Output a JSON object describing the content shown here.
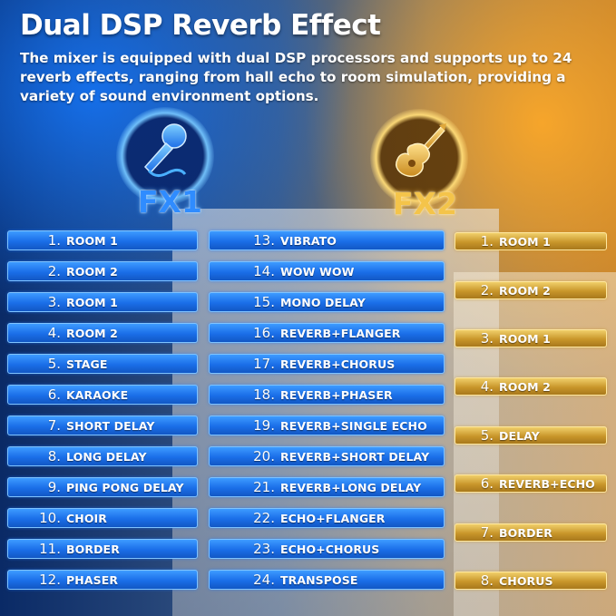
{
  "header": {
    "title": "Dual DSP Reverb Effect",
    "description": "The mixer is equipped with dual DSP processors and supports up to 24 reverb effects, ranging from hall echo to room simulation, providing a variety of sound environment options."
  },
  "fx1": {
    "label": "FX1",
    "icon": "microphone-icon",
    "accent": "#2f8cff",
    "items": [
      {
        "num": "1.",
        "name": "ROOM 1"
      },
      {
        "num": "2.",
        "name": "ROOM 2"
      },
      {
        "num": "3.",
        "name": "ROOM 1"
      },
      {
        "num": "4.",
        "name": "ROOM 2"
      },
      {
        "num": "5.",
        "name": "STAGE"
      },
      {
        "num": "6.",
        "name": "KARAOKE"
      },
      {
        "num": "7.",
        "name": "SHORT DELAY"
      },
      {
        "num": "8.",
        "name": "LONG DELAY"
      },
      {
        "num": "9.",
        "name": "PING PONG DELAY"
      },
      {
        "num": "10.",
        "name": "CHOIR"
      },
      {
        "num": "11.",
        "name": "BORDER"
      },
      {
        "num": "12.",
        "name": "PHASER"
      }
    ],
    "items2": [
      {
        "num": "13.",
        "name": "VIBRATO"
      },
      {
        "num": "14.",
        "name": "WOW WOW"
      },
      {
        "num": "15.",
        "name": "MONO DELAY"
      },
      {
        "num": "16.",
        "name": "REVERB+FLANGER"
      },
      {
        "num": "17.",
        "name": "REVERB+CHORUS"
      },
      {
        "num": "18.",
        "name": "REVERB+PHASER"
      },
      {
        "num": "19.",
        "name": "REVERB+SINGLE ECHO"
      },
      {
        "num": "20.",
        "name": "REVERB+SHORT DELAY"
      },
      {
        "num": "21.",
        "name": "REVERB+LONG DELAY"
      },
      {
        "num": "22.",
        "name": "ECHO+FLANGER"
      },
      {
        "num": "23.",
        "name": "ECHO+CHORUS"
      },
      {
        "num": "24.",
        "name": "TRANSPOSE"
      }
    ]
  },
  "fx2": {
    "label": "FX2",
    "icon": "electric-guitar-icon",
    "accent": "#f4c44a",
    "items": [
      {
        "num": "1.",
        "name": "ROOM 1"
      },
      {
        "num": "2.",
        "name": "ROOM 2"
      },
      {
        "num": "3.",
        "name": "ROOM 1"
      },
      {
        "num": "4.",
        "name": "ROOM 2"
      },
      {
        "num": "5.",
        "name": "DELAY"
      },
      {
        "num": "6.",
        "name": "REVERB+ECHO"
      },
      {
        "num": "7.",
        "name": "BORDER"
      },
      {
        "num": "8.",
        "name": "CHORUS"
      }
    ]
  }
}
